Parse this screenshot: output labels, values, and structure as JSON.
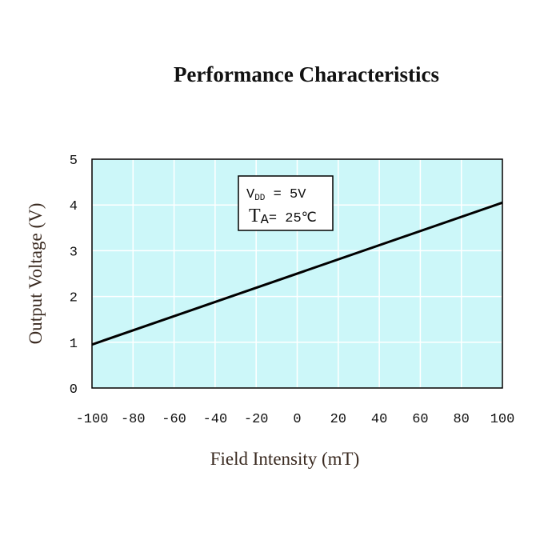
{
  "chart_data": {
    "type": "line",
    "title": "Performance Characteristics",
    "xlabel": "Field Intensity (mT)",
    "ylabel": "Output Voltage (V)",
    "xlim": [
      -100,
      100
    ],
    "ylim": [
      0,
      5
    ],
    "x_ticks": [
      "-100",
      "-80",
      "-60",
      "-40",
      "-20",
      "0",
      "20",
      "40",
      "60",
      "80",
      "100"
    ],
    "y_ticks": [
      "0",
      "1",
      "2",
      "3",
      "4",
      "5"
    ],
    "grid": true,
    "series": [
      {
        "x": [
          -100,
          100
        ],
        "y": [
          0.95,
          4.05
        ]
      }
    ],
    "annotation": {
      "vdd_label": "V",
      "vdd_sub": "DD",
      "vdd_value": " = 5V",
      "ta_label": "T",
      "ta_sub": "A",
      "ta_value": "= 25℃"
    },
    "colors": {
      "plot_background": "#ccf7f9",
      "grid": "#ffffff",
      "line": "#000000",
      "label_color": "#3a2a20"
    }
  }
}
